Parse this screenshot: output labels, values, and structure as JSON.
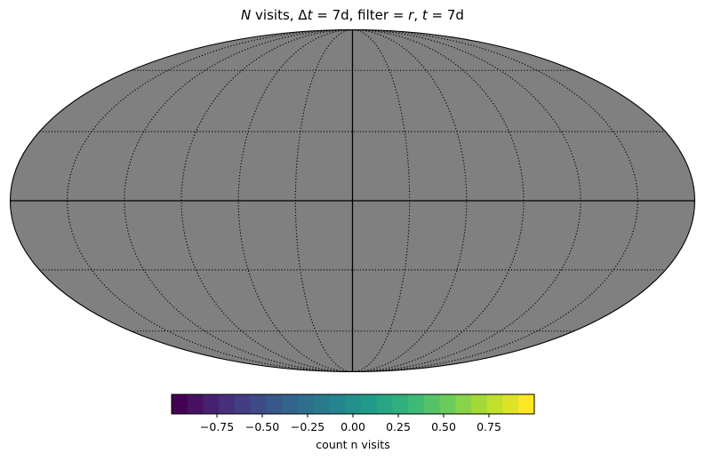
{
  "chart_data": {
    "type": "heatmap",
    "projection": "mollweide",
    "title": {
      "part1": "N",
      "part2": " visits, Δ",
      "part3": "t",
      "part4": " = 7d, filter = ",
      "part5": "r",
      "part6": ", ",
      "part7": "t",
      "part8": " = 7d"
    },
    "map_fill_color": "#808080",
    "graticule": {
      "meridian_step_deg": 30,
      "parallel_step_deg": 30,
      "style": "dotted"
    },
    "colorbar": {
      "label": "count n visits",
      "vmin": -1.0,
      "vmax": 1.0,
      "n_steps": 23,
      "colormap": "viridis",
      "ticks": [
        -0.75,
        -0.5,
        -0.25,
        0.0,
        0.25,
        0.5,
        0.75
      ],
      "tick_labels": [
        "−0.75",
        "−0.50",
        "−0.25",
        "0.00",
        "0.25",
        "0.50",
        "0.75"
      ]
    }
  }
}
